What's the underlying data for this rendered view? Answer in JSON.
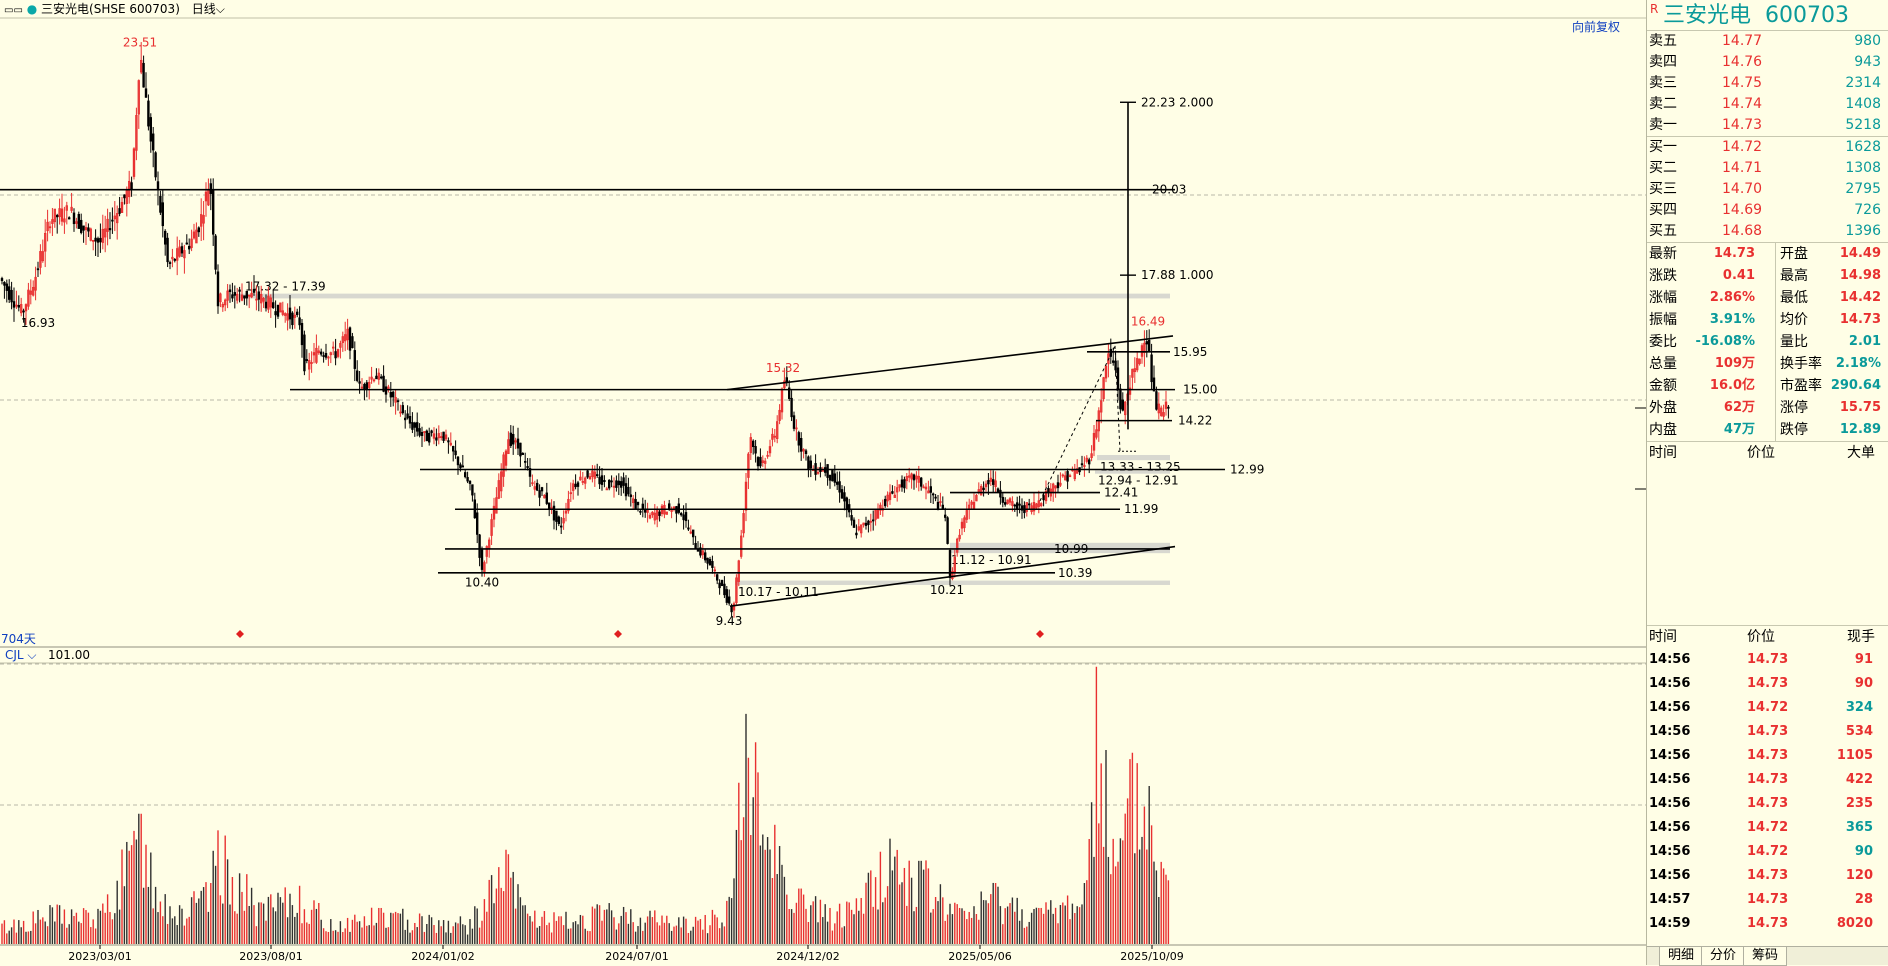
{
  "window": {
    "title": "三安光电(SHSE 600703)",
    "period": "日线",
    "restore_label": "向前复权",
    "day_count": "704天",
    "volume_indicator": "CJL",
    "volume_value": "101.00"
  },
  "colors": {
    "up": "#e83030",
    "down": "#000000",
    "accent": "#0a9a9a",
    "link": "#1040c0",
    "background": "#fffee6"
  },
  "chart_data": {
    "type": "candlestick",
    "x_tick_labels": [
      "2023/03/01",
      "2023/08/01",
      "2024/01/02",
      "2024/07/01",
      "2024/12/02",
      "2025/05/06",
      "2025/10/09"
    ],
    "price_range": [
      8.7,
      24.3
    ],
    "price_path": [
      [
        0,
        17.8
      ],
      [
        10,
        17.4
      ],
      [
        22,
        16.93
      ],
      [
        35,
        17.8
      ],
      [
        50,
        19.3
      ],
      [
        70,
        19.5
      ],
      [
        85,
        19.0
      ],
      [
        100,
        18.7
      ],
      [
        110,
        19.2
      ],
      [
        120,
        19.6
      ],
      [
        132,
        20.2
      ],
      [
        140,
        23.51
      ],
      [
        150,
        21.4
      ],
      [
        160,
        19.6
      ],
      [
        168,
        18.1
      ],
      [
        178,
        18.4
      ],
      [
        190,
        18.7
      ],
      [
        200,
        19.2
      ],
      [
        210,
        20.3
      ],
      [
        218,
        17.2
      ],
      [
        230,
        17.4
      ],
      [
        242,
        17.4
      ],
      [
        260,
        17.3
      ],
      [
        280,
        17.0
      ],
      [
        300,
        16.7
      ],
      [
        305,
        15.5
      ],
      [
        318,
        16.0
      ],
      [
        335,
        15.9
      ],
      [
        348,
        16.4
      ],
      [
        360,
        15.0
      ],
      [
        375,
        15.4
      ],
      [
        392,
        14.8
      ],
      [
        408,
        14.2
      ],
      [
        425,
        13.8
      ],
      [
        442,
        13.9
      ],
      [
        460,
        13.1
      ],
      [
        472,
        12.4
      ],
      [
        482,
        10.4
      ],
      [
        492,
        11.7
      ],
      [
        508,
        13.8
      ],
      [
        520,
        13.5
      ],
      [
        532,
        12.6
      ],
      [
        545,
        12.3
      ],
      [
        560,
        11.5
      ],
      [
        572,
        12.6
      ],
      [
        590,
        12.9
      ],
      [
        605,
        12.6
      ],
      [
        620,
        12.7
      ],
      [
        635,
        12.1
      ],
      [
        650,
        11.8
      ],
      [
        665,
        12.0
      ],
      [
        680,
        12.0
      ],
      [
        695,
        11.1
      ],
      [
        710,
        10.6
      ],
      [
        722,
        10.0
      ],
      [
        733,
        9.43
      ],
      [
        742,
        11.5
      ],
      [
        750,
        13.9
      ],
      [
        760,
        13.0
      ],
      [
        775,
        13.9
      ],
      [
        785,
        15.32
      ],
      [
        795,
        14.0
      ],
      [
        810,
        13.0
      ],
      [
        825,
        13.0
      ],
      [
        840,
        12.5
      ],
      [
        855,
        11.4
      ],
      [
        870,
        11.7
      ],
      [
        885,
        12.2
      ],
      [
        900,
        12.6
      ],
      [
        915,
        12.8
      ],
      [
        930,
        12.4
      ],
      [
        945,
        11.9
      ],
      [
        950,
        10.21
      ],
      [
        960,
        11.5
      ],
      [
        975,
        12.3
      ],
      [
        990,
        12.8
      ],
      [
        1005,
        12.2
      ],
      [
        1020,
        12.0
      ],
      [
        1035,
        12.1
      ],
      [
        1050,
        12.5
      ],
      [
        1065,
        12.8
      ],
      [
        1080,
        13.0
      ],
      [
        1090,
        13.3
      ],
      [
        1098,
        14.3
      ],
      [
        1108,
        15.9
      ],
      [
        1115,
        15.6
      ],
      [
        1122,
        14.3
      ],
      [
        1130,
        15.2
      ],
      [
        1138,
        15.7
      ],
      [
        1146,
        16.49
      ],
      [
        1155,
        14.6
      ],
      [
        1163,
        14.4
      ],
      [
        1170,
        14.73
      ]
    ],
    "high_low_labels": [
      {
        "label": "23.51",
        "x": 140,
        "price": 23.51,
        "color": "up",
        "pos": "above"
      },
      {
        "label": "16.93",
        "x": 38,
        "price": 16.93,
        "color": "down",
        "pos": "below"
      },
      {
        "label": "15.32",
        "x": 783,
        "price": 15.32,
        "color": "up",
        "pos": "above"
      },
      {
        "label": "10.40",
        "x": 482,
        "price": 10.4,
        "color": "down",
        "pos": "below"
      },
      {
        "label": "9.43",
        "x": 729,
        "price": 9.43,
        "color": "down",
        "pos": "below"
      },
      {
        "label": "10.21",
        "x": 947,
        "price": 10.21,
        "color": "down",
        "pos": "below"
      },
      {
        "label": "16.49",
        "x": 1148,
        "price": 16.49,
        "color": "up",
        "pos": "above"
      }
    ],
    "horizontal_lines": [
      {
        "label": "20.03",
        "price": 20.03,
        "x1": 0,
        "x2": 1175,
        "lx": 1152
      },
      {
        "label": "15.00",
        "price": 15.0,
        "x1": 290,
        "x2": 1175,
        "lx": 1183
      },
      {
        "label": "12.99",
        "price": 12.99,
        "x1": 420,
        "x2": 1225,
        "lx": 1230
      },
      {
        "label": "11.99",
        "price": 11.99,
        "x1": 455,
        "x2": 1120,
        "lx": 1124
      },
      {
        "label": "12.41",
        "price": 12.41,
        "x1": 950,
        "x2": 1100,
        "lx": 1104
      },
      {
        "label": "10.99",
        "price": 10.99,
        "x1": 445,
        "x2": 1170,
        "lx": 1054
      },
      {
        "label": "10.39",
        "price": 10.39,
        "x1": 438,
        "x2": 1055,
        "lx": 1058
      },
      {
        "label": "15.95",
        "price": 15.95,
        "x1": 1087,
        "x2": 1170,
        "lx": 1173
      },
      {
        "label": "14.22",
        "price": 14.22,
        "x1": 1096,
        "x2": 1172,
        "lx": 1178
      }
    ],
    "zones": [
      {
        "label": "17.32 - 17.39",
        "low": 17.32,
        "high": 17.39,
        "x1": 240,
        "x2": 1170,
        "lx": 245,
        "lpos": "above"
      },
      {
        "label": "13.33 - 13.25",
        "low": 13.25,
        "high": 13.33,
        "x1": 1097,
        "x2": 1170,
        "lx": 1100,
        "lpos": "below"
      },
      {
        "label": "12.94 - 12.91",
        "low": 12.91,
        "high": 12.94,
        "x1": 1095,
        "x2": 1170,
        "lx": 1098,
        "lpos": "below"
      },
      {
        "label": "11.12 - 10.91",
        "low": 10.91,
        "high": 11.12,
        "x1": 950,
        "x2": 1170,
        "lx": 951,
        "lpos": "below"
      },
      {
        "label": "10.17 - 10.11",
        "low": 10.11,
        "high": 10.17,
        "x1": 735,
        "x2": 1170,
        "lx": 738,
        "lpos": "below"
      }
    ],
    "trendlines": [
      {
        "x1": 727,
        "p1": 15.0,
        "x2": 1173,
        "p2": 16.35
      },
      {
        "x1": 730,
        "p1": 9.55,
        "x2": 1175,
        "p2": 11.05
      }
    ],
    "projection": {
      "x": 1128,
      "top": 22.23,
      "bottom": 14.0,
      "levels": [
        {
          "label": "22.23  2.000",
          "price": 22.23
        },
        {
          "label": "17.88  1.000",
          "price": 17.88
        }
      ],
      "dashed_up": {
        "x1": 1040,
        "p1": 12.2,
        "x2": 1115,
        "p2": 16.1
      },
      "dashed_down": {
        "x1": 1115,
        "p1": 16.1,
        "x2": 1120,
        "p2": 13.45
      }
    },
    "markers_x": [
      240,
      618,
      1040
    ],
    "volume_peaks": [
      [
        0,
        8
      ],
      [
        60,
        14
      ],
      [
        100,
        12
      ],
      [
        140,
        47
      ],
      [
        150,
        33
      ],
      [
        165,
        18
      ],
      [
        180,
        14
      ],
      [
        210,
        22
      ],
      [
        217,
        41
      ],
      [
        260,
        15
      ],
      [
        300,
        21
      ],
      [
        330,
        9
      ],
      [
        380,
        13
      ],
      [
        420,
        11
      ],
      [
        470,
        9
      ],
      [
        505,
        34
      ],
      [
        525,
        14
      ],
      [
        560,
        10
      ],
      [
        600,
        14
      ],
      [
        650,
        12
      ],
      [
        700,
        9
      ],
      [
        730,
        17
      ],
      [
        745,
        83
      ],
      [
        775,
        43
      ],
      [
        800,
        20
      ],
      [
        830,
        13
      ],
      [
        850,
        15
      ],
      [
        890,
        38
      ],
      [
        920,
        30
      ],
      [
        960,
        13
      ],
      [
        995,
        22
      ],
      [
        1040,
        13
      ],
      [
        1085,
        22
      ],
      [
        1097,
        100
      ],
      [
        1106,
        70
      ],
      [
        1115,
        28
      ],
      [
        1133,
        69
      ],
      [
        1150,
        57
      ],
      [
        1165,
        25
      ]
    ]
  },
  "quote": {
    "marker": "R",
    "name": "三安光电",
    "code": "600703",
    "asks": [
      {
        "label": "卖五",
        "price": "14.77",
        "vol": "980"
      },
      {
        "label": "卖四",
        "price": "14.76",
        "vol": "943"
      },
      {
        "label": "卖三",
        "price": "14.75",
        "vol": "2314"
      },
      {
        "label": "卖二",
        "price": "14.74",
        "vol": "1408"
      },
      {
        "label": "卖一",
        "price": "14.73",
        "vol": "5218"
      }
    ],
    "bids": [
      {
        "label": "买一",
        "price": "14.72",
        "vol": "1628"
      },
      {
        "label": "买二",
        "price": "14.71",
        "vol": "1308"
      },
      {
        "label": "买三",
        "price": "14.70",
        "vol": "2795"
      },
      {
        "label": "买四",
        "price": "14.69",
        "vol": "726"
      },
      {
        "label": "买五",
        "price": "14.68",
        "vol": "1396"
      }
    ],
    "stats": [
      {
        "l1": "最新",
        "v1": "14.73",
        "c1": "red",
        "l2": "开盘",
        "v2": "14.49",
        "c2": "red"
      },
      {
        "l1": "涨跌",
        "v1": "0.41",
        "c1": "red",
        "l2": "最高",
        "v2": "14.98",
        "c2": "red"
      },
      {
        "l1": "涨幅",
        "v1": "2.86%",
        "c1": "red",
        "l2": "最低",
        "v2": "14.42",
        "c2": "red"
      },
      {
        "l1": "振幅",
        "v1": "3.91%",
        "c1": "teal",
        "l2": "均价",
        "v2": "14.73",
        "c2": "red"
      },
      {
        "l1": "委比",
        "v1": "-16.08%",
        "c1": "teal",
        "l2": "量比",
        "v2": "2.01",
        "c2": "teal"
      },
      {
        "l1": "总量",
        "v1": "109万",
        "c1": "red",
        "l2": "换手率",
        "v2": "2.18%",
        "c2": "teal"
      },
      {
        "l1": "金额",
        "v1": "16.0亿",
        "c1": "red",
        "l2": "市盈率",
        "v2": "290.64",
        "c2": "teal"
      },
      {
        "l1": "外盘",
        "v1": "62万",
        "c1": "red",
        "l2": "涨停",
        "v2": "15.75",
        "c2": "red"
      },
      {
        "l1": "内盘",
        "v1": "47万",
        "c1": "teal",
        "l2": "跌停",
        "v2": "12.89",
        "c2": "teal"
      }
    ],
    "big_header": {
      "time": "时间",
      "price": "价位",
      "size": "大单"
    },
    "tick_header": {
      "time": "时间",
      "price": "价位",
      "size": "现手"
    },
    "ticks": [
      {
        "time": "14:56",
        "price": "14.73",
        "vol": "91",
        "c": "red"
      },
      {
        "time": "14:56",
        "price": "14.73",
        "vol": "90",
        "c": "red"
      },
      {
        "time": "14:56",
        "price": "14.72",
        "vol": "324",
        "c": "teal"
      },
      {
        "time": "14:56",
        "price": "14.73",
        "vol": "534",
        "c": "red"
      },
      {
        "time": "14:56",
        "price": "14.73",
        "vol": "1105",
        "c": "red"
      },
      {
        "time": "14:56",
        "price": "14.73",
        "vol": "422",
        "c": "red"
      },
      {
        "time": "14:56",
        "price": "14.73",
        "vol": "235",
        "c": "red"
      },
      {
        "time": "14:56",
        "price": "14.72",
        "vol": "365",
        "c": "teal"
      },
      {
        "time": "14:56",
        "price": "14.72",
        "vol": "90",
        "c": "teal"
      },
      {
        "time": "14:56",
        "price": "14.73",
        "vol": "120",
        "c": "red"
      },
      {
        "time": "14:57",
        "price": "14.73",
        "vol": "28",
        "c": "red"
      },
      {
        "time": "14:59",
        "price": "14.73",
        "vol": "8020",
        "c": "red"
      }
    ],
    "tabs": [
      "明细",
      "分价",
      "筹码"
    ]
  }
}
